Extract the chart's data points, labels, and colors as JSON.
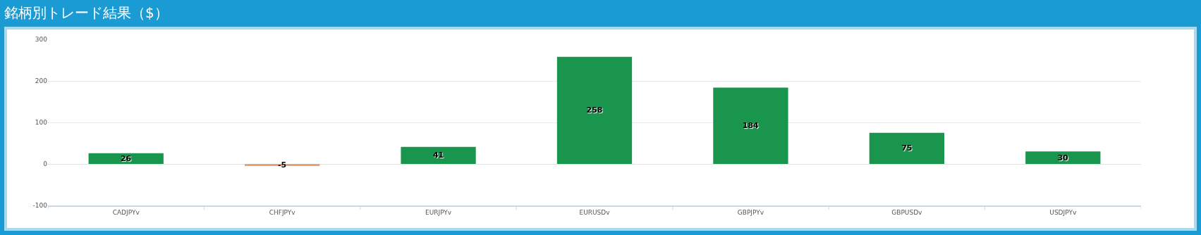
{
  "chart_data": {
    "type": "bar",
    "title": "銘柄別トレード結果（$）",
    "categories": [
      "CADJPYv",
      "CHFJPYv",
      "EURJPYv",
      "EURUSDv",
      "GBPJPYv",
      "GBPUSDv",
      "USDJPYv"
    ],
    "values": [
      26,
      -5,
      41,
      258,
      184,
      75,
      30
    ],
    "colors": [
      "#1a954d",
      "#e8a173",
      "#1a954d",
      "#1a954d",
      "#1a954d",
      "#1a954d",
      "#1a954d"
    ],
    "ylim": [
      -100,
      300
    ],
    "yticks": [
      -100,
      0,
      100,
      200,
      300
    ],
    "grid": "y",
    "data_labels": true
  }
}
